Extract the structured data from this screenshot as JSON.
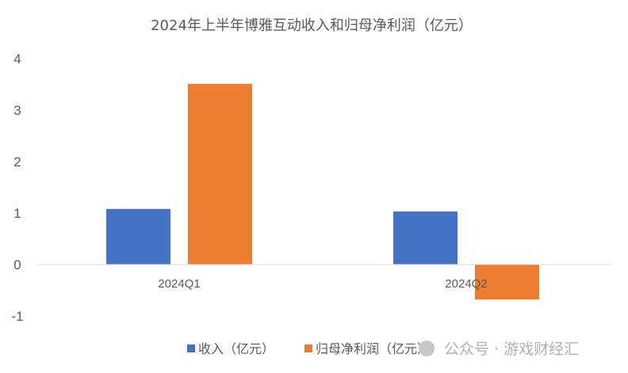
{
  "chart_data": {
    "type": "bar",
    "title": "2024年上半年博雅互动收入和归母净利润（亿元）",
    "categories": [
      "2024Q1",
      "2024Q2"
    ],
    "series": [
      {
        "name": "收入（亿元）",
        "values": [
          1.08,
          1.03
        ],
        "color": "#4472C4"
      },
      {
        "name": "归母净利润（亿元）",
        "values": [
          3.51,
          -0.68
        ],
        "color": "#ED7D31"
      }
    ],
    "ylim": [
      -1,
      4
    ],
    "yticks": [
      4,
      3,
      2,
      1,
      0,
      -1
    ],
    "grid": false,
    "legend": "bottom",
    "xlabel": "",
    "ylabel": ""
  },
  "watermark": "公众号 · 游戏财经汇"
}
